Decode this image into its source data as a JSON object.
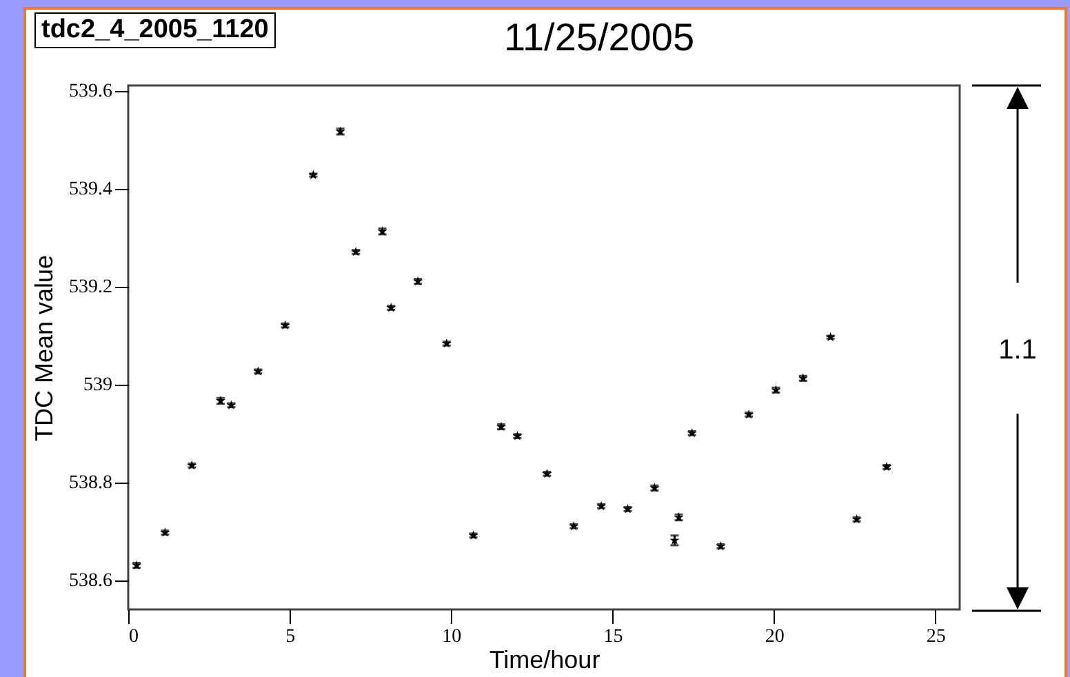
{
  "chart_data": {
    "type": "scatter",
    "title": "11/25/2005",
    "xlabel": "Time/hour",
    "ylabel": "TDC Mean value",
    "annotations": [
      "tdc2_4_2005_1120",
      "1.1"
    ],
    "x": [
      0.26,
      1.14,
      1.97,
      2.86,
      3.19,
      4.02,
      4.86,
      5.73,
      6.57,
      7.05,
      7.87,
      8.14,
      8.97,
      9.86,
      10.69,
      11.55,
      12.05,
      12.97,
      13.8,
      14.65,
      15.47,
      16.3,
      16.92,
      17.05,
      17.46,
      18.35,
      19.22,
      20.06,
      20.9,
      21.75,
      22.56,
      23.49
    ],
    "series": [
      {
        "color": "#000000",
        "values": [
          538.63,
          538.697,
          538.834,
          538.966,
          538.957,
          539.026,
          539.12,
          539.427,
          539.516,
          539.27,
          539.312,
          539.156,
          539.21,
          539.083,
          538.691,
          538.913,
          538.894,
          538.817,
          538.71,
          538.751,
          538.745,
          538.788,
          538.681,
          538.728,
          538.9,
          538.669,
          538.938,
          538.988,
          539.012,
          539.096,
          538.724,
          538.831
        ],
        "errors": [
          0.005,
          0.004,
          0.004,
          0.006,
          0.004,
          0.004,
          0.004,
          0.003,
          0.006,
          0.004,
          0.006,
          0.004,
          0.005,
          0.004,
          0.004,
          0.005,
          0.004,
          0.004,
          0.004,
          0.004,
          0.004,
          0.005,
          0.01,
          0.006,
          0.004,
          0.004,
          0.004,
          0.005,
          0.005,
          0.003,
          0.004,
          0.004
        ]
      }
    ],
    "xlim": [
      0,
      25.75
    ],
    "xticks": [
      0,
      5,
      10,
      15,
      20,
      25
    ],
    "ylim": [
      538.54,
      539.61
    ],
    "yticks": [
      538.6,
      538.8,
      539,
      539.2,
      539.4,
      539.6
    ],
    "grid": false,
    "marker": "star"
  }
}
